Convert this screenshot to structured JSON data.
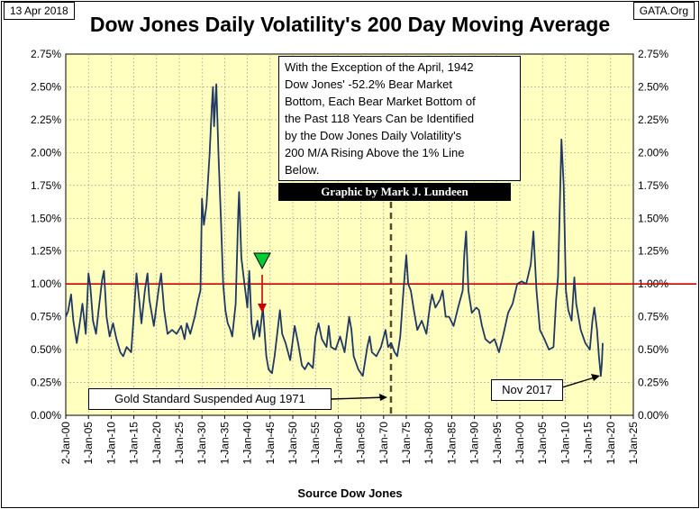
{
  "header": {
    "date": "13 Apr 2018",
    "source_site": "GATA.Org"
  },
  "chart_data": {
    "type": "line",
    "title": "Dow Jones Daily Volatility's 200 Day Moving Average",
    "xlabel": "Source Dow Jones",
    "ylabel": "",
    "ylim": [
      0,
      0.0275
    ],
    "y_ticks": [
      "0.00%",
      "0.25%",
      "0.50%",
      "0.75%",
      "1.00%",
      "1.25%",
      "1.50%",
      "1.75%",
      "2.00%",
      "2.25%",
      "2.50%",
      "2.75%"
    ],
    "x_ticks": [
      "2-Jan-00",
      "1-Jan-05",
      "1-Jan-10",
      "1-Jan-15",
      "1-Jan-20",
      "1-Jan-25",
      "1-Jan-30",
      "1-Jan-35",
      "1-Jan-40",
      "1-Jan-45",
      "1-Jan-50",
      "1-Jan-55",
      "1-Jan-60",
      "1-Jan-65",
      "1-Jan-70",
      "1-Jan-75",
      "1-Jan-80",
      "1-Jan-85",
      "1-Jan-90",
      "1-Jan-95",
      "1-Jan-00",
      "1-Jan-05",
      "1-Jan-10",
      "1-Jan-15",
      "1-Jan-20",
      "1-Jan-25"
    ],
    "xlim": [
      "1900-01-02",
      "2025-01-01"
    ],
    "reference_line": {
      "y": 0.01,
      "color": "#cc0000"
    },
    "vertical_marker": {
      "x": "1971-08-15",
      "style": "dashed"
    },
    "background": "#ffffc0",
    "grid": true,
    "series": [
      {
        "color": "#1f3864",
        "points": [
          [
            "1900-01",
            0.0075
          ],
          [
            "1900-07",
            0.0079
          ],
          [
            "1901-03",
            0.0092
          ],
          [
            "1901-09",
            0.0072
          ],
          [
            "1902-06",
            0.0055
          ],
          [
            "1903-01",
            0.0068
          ],
          [
            "1903-09",
            0.0085
          ],
          [
            "1904-06",
            0.0062
          ],
          [
            "1905-01",
            0.0108
          ],
          [
            "1905-06",
            0.0098
          ],
          [
            "1906-01",
            0.0072
          ],
          [
            "1906-09",
            0.0062
          ],
          [
            "1907-03",
            0.0078
          ],
          [
            "1908-01",
            0.0103
          ],
          [
            "1908-06",
            0.011
          ],
          [
            "1909-01",
            0.0075
          ],
          [
            "1909-09",
            0.006
          ],
          [
            "1910-06",
            0.007
          ],
          [
            "1911-03",
            0.0058
          ],
          [
            "1912-01",
            0.0048
          ],
          [
            "1912-09",
            0.0045
          ],
          [
            "1913-06",
            0.0052
          ],
          [
            "1914-06",
            0.0048
          ],
          [
            "1915-03",
            0.0085
          ],
          [
            "1915-08",
            0.0108
          ],
          [
            "1916-03",
            0.0088
          ],
          [
            "1916-09",
            0.007
          ],
          [
            "1917-06",
            0.0095
          ],
          [
            "1918-01",
            0.0108
          ],
          [
            "1918-06",
            0.0088
          ],
          [
            "1919-06",
            0.0068
          ],
          [
            "1920-06",
            0.0095
          ],
          [
            "1921-01",
            0.0108
          ],
          [
            "1921-09",
            0.008
          ],
          [
            "1922-06",
            0.0062
          ],
          [
            "1923-06",
            0.0065
          ],
          [
            "1924-06",
            0.0062
          ],
          [
            "1925-06",
            0.0068
          ],
          [
            "1926-03",
            0.0058
          ],
          [
            "1926-09",
            0.007
          ],
          [
            "1927-06",
            0.0062
          ],
          [
            "1928-06",
            0.0075
          ],
          [
            "1929-03",
            0.0088
          ],
          [
            "1929-09",
            0.0095
          ],
          [
            "1930-01",
            0.0165
          ],
          [
            "1930-06",
            0.0145
          ],
          [
            "1931-01",
            0.016
          ],
          [
            "1931-09",
            0.0198
          ],
          [
            "1932-03",
            0.0235
          ],
          [
            "1932-06",
            0.025
          ],
          [
            "1932-09",
            0.022
          ],
          [
            "1933-03",
            0.0252
          ],
          [
            "1933-09",
            0.0195
          ],
          [
            "1934-03",
            0.015
          ],
          [
            "1934-09",
            0.01
          ],
          [
            "1935-03",
            0.008
          ],
          [
            "1935-09",
            0.007
          ],
          [
            "1936-03",
            0.0066
          ],
          [
            "1936-09",
            0.006
          ],
          [
            "1937-06",
            0.0085
          ],
          [
            "1938-01",
            0.0155
          ],
          [
            "1938-03",
            0.017
          ],
          [
            "1938-09",
            0.012
          ],
          [
            "1939-06",
            0.0098
          ],
          [
            "1940-01",
            0.0082
          ],
          [
            "1940-06",
            0.011
          ],
          [
            "1940-12",
            0.007
          ],
          [
            "1941-06",
            0.0058
          ],
          [
            "1942-04",
            0.0072
          ],
          [
            "1942-09",
            0.006
          ],
          [
            "1943-06",
            0.0082
          ],
          [
            "1944-03",
            0.0045
          ],
          [
            "1944-09",
            0.0035
          ],
          [
            "1945-06",
            0.0032
          ],
          [
            "1946-01",
            0.0045
          ],
          [
            "1946-09",
            0.0065
          ],
          [
            "1947-03",
            0.008
          ],
          [
            "1947-09",
            0.0062
          ],
          [
            "1948-06",
            0.0055
          ],
          [
            "1949-06",
            0.0042
          ],
          [
            "1950-06",
            0.0068
          ],
          [
            "1951-03",
            0.0055
          ],
          [
            "1952-01",
            0.0038
          ],
          [
            "1952-09",
            0.0035
          ],
          [
            "1953-06",
            0.004
          ],
          [
            "1954-06",
            0.0036
          ],
          [
            "1955-01",
            0.006
          ],
          [
            "1955-09",
            0.007
          ],
          [
            "1956-06",
            0.0058
          ],
          [
            "1957-06",
            0.0052
          ],
          [
            "1957-12",
            0.0068
          ],
          [
            "1958-06",
            0.0052
          ],
          [
            "1959-06",
            0.005
          ],
          [
            "1960-06",
            0.006
          ],
          [
            "1961-06",
            0.0048
          ],
          [
            "1962-06",
            0.0075
          ],
          [
            "1962-12",
            0.0065
          ],
          [
            "1963-06",
            0.0045
          ],
          [
            "1964-06",
            0.0035
          ],
          [
            "1965-06",
            0.003
          ],
          [
            "1966-06",
            0.0052
          ],
          [
            "1966-12",
            0.006
          ],
          [
            "1967-06",
            0.0048
          ],
          [
            "1968-06",
            0.0045
          ],
          [
            "1969-06",
            0.0052
          ],
          [
            "1970-06",
            0.0065
          ],
          [
            "1971-01",
            0.0052
          ],
          [
            "1971-09",
            0.0055
          ],
          [
            "1972-06",
            0.0048
          ],
          [
            "1973-01",
            0.0045
          ],
          [
            "1973-09",
            0.006
          ],
          [
            "1974-03",
            0.0085
          ],
          [
            "1974-09",
            0.0108
          ],
          [
            "1975-01",
            0.0122
          ],
          [
            "1975-06",
            0.01
          ],
          [
            "1976-01",
            0.0095
          ],
          [
            "1976-09",
            0.008
          ],
          [
            "1977-06",
            0.0065
          ],
          [
            "1978-06",
            0.0072
          ],
          [
            "1979-06",
            0.0062
          ],
          [
            "1980-03",
            0.0082
          ],
          [
            "1980-09",
            0.0092
          ],
          [
            "1981-06",
            0.0082
          ],
          [
            "1982-06",
            0.0088
          ],
          [
            "1983-01",
            0.0095
          ],
          [
            "1983-09",
            0.0075
          ],
          [
            "1984-06",
            0.0075
          ],
          [
            "1985-06",
            0.0068
          ],
          [
            "1986-06",
            0.0082
          ],
          [
            "1987-06",
            0.0095
          ],
          [
            "1987-10",
            0.0122
          ],
          [
            "1988-03",
            0.014
          ],
          [
            "1988-09",
            0.0095
          ],
          [
            "1989-06",
            0.0078
          ],
          [
            "1990-06",
            0.0082
          ],
          [
            "1991-01",
            0.008
          ],
          [
            "1991-09",
            0.0068
          ],
          [
            "1992-06",
            0.0058
          ],
          [
            "1993-06",
            0.0055
          ],
          [
            "1994-06",
            0.0058
          ],
          [
            "1995-06",
            0.0048
          ],
          [
            "1996-06",
            0.0062
          ],
          [
            "1997-06",
            0.0078
          ],
          [
            "1998-06",
            0.0085
          ],
          [
            "1999-06",
            0.01
          ],
          [
            "2000-06",
            0.0102
          ],
          [
            "2001-06",
            0.01
          ],
          [
            "2002-06",
            0.0115
          ],
          [
            "2003-01",
            0.014
          ],
          [
            "2003-09",
            0.0095
          ],
          [
            "2004-06",
            0.0065
          ],
          [
            "2005-06",
            0.0058
          ],
          [
            "2006-06",
            0.005
          ],
          [
            "2007-06",
            0.0052
          ],
          [
            "2008-01",
            0.0088
          ],
          [
            "2008-06",
            0.0105
          ],
          [
            "2008-09",
            0.014
          ],
          [
            "2009-03",
            0.021
          ],
          [
            "2009-09",
            0.0175
          ],
          [
            "2010-03",
            0.0095
          ],
          [
            "2010-09",
            0.008
          ],
          [
            "2011-06",
            0.0072
          ],
          [
            "2012-01",
            0.0105
          ],
          [
            "2012-06",
            0.0085
          ],
          [
            "2013-06",
            0.0065
          ],
          [
            "2014-06",
            0.0055
          ],
          [
            "2015-06",
            0.005
          ],
          [
            "2016-01",
            0.0072
          ],
          [
            "2016-06",
            0.0082
          ],
          [
            "2017-01",
            0.0065
          ],
          [
            "2017-06",
            0.0045
          ],
          [
            "2017-11",
            0.003
          ],
          [
            "2018-02",
            0.004
          ],
          [
            "2018-04",
            0.0055
          ]
        ]
      }
    ]
  },
  "annotations": {
    "note_box": [
      "With the Exception of the April, 1942",
      "Dow Jones' -52.2% Bear Market",
      "Bottom, Each Bear Market Bottom of",
      "the Past 118 Years Can be Identified",
      "by the Dow Jones Daily Volatility's",
      "200 M/A Rising Above the 1% Line",
      "Below."
    ],
    "credit": "Graphic by Mark J. Lundeen",
    "gold_standard": "Gold Standard Suspended Aug 1971",
    "nov_2017": "Nov 2017"
  }
}
